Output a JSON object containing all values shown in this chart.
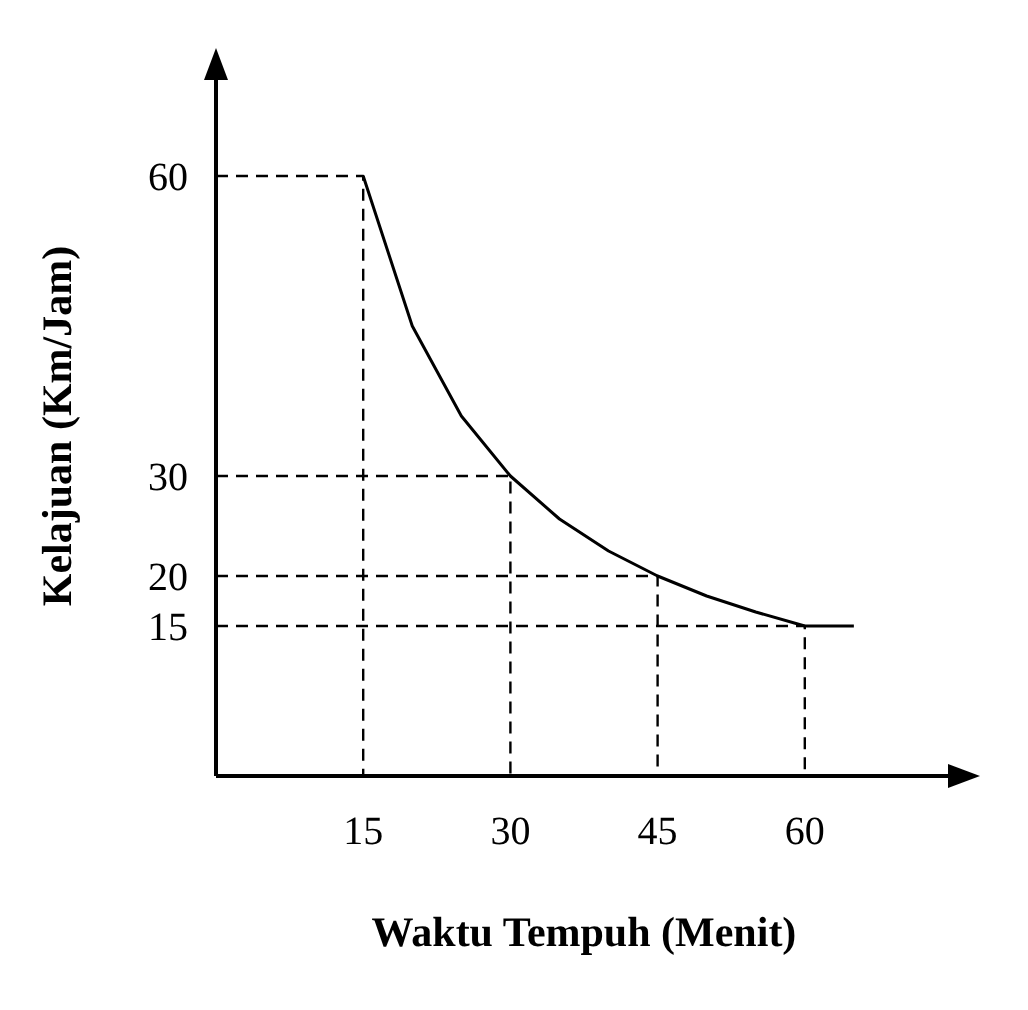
{
  "chart_data": {
    "type": "line",
    "xlabel": "Waktu Tempuh (Menit)",
    "ylabel": "Kelajuan (Km/Jam)",
    "xlim": [
      0,
      75
    ],
    "ylim": [
      0,
      70
    ],
    "xticks": [
      15,
      30,
      45,
      60
    ],
    "yticks": [
      15,
      20,
      30,
      60
    ],
    "series": [
      {
        "color": "#000000",
        "x": [
          15,
          20,
          25,
          30,
          35,
          40,
          45,
          50,
          55,
          60,
          65
        ],
        "values": [
          60,
          45,
          36,
          30,
          25.7,
          22.5,
          20,
          18,
          16.4,
          15,
          15
        ]
      },
      {
        "color": "#000000",
        "line_style": "dashed",
        "x": [
          0,
          15,
          15
        ],
        "values": [
          60,
          60,
          0
        ]
      },
      {
        "color": "#000000",
        "line_style": "dashed",
        "x": [
          0,
          30,
          30
        ],
        "values": [
          30,
          30,
          0
        ]
      },
      {
        "color": "#000000",
        "line_style": "dashed",
        "x": [
          0,
          45,
          45
        ],
        "values": [
          20,
          20,
          0
        ]
      },
      {
        "color": "#000000",
        "line_style": "dashed",
        "x": [
          0,
          60,
          60
        ],
        "values": [
          15,
          15,
          0
        ]
      }
    ]
  }
}
